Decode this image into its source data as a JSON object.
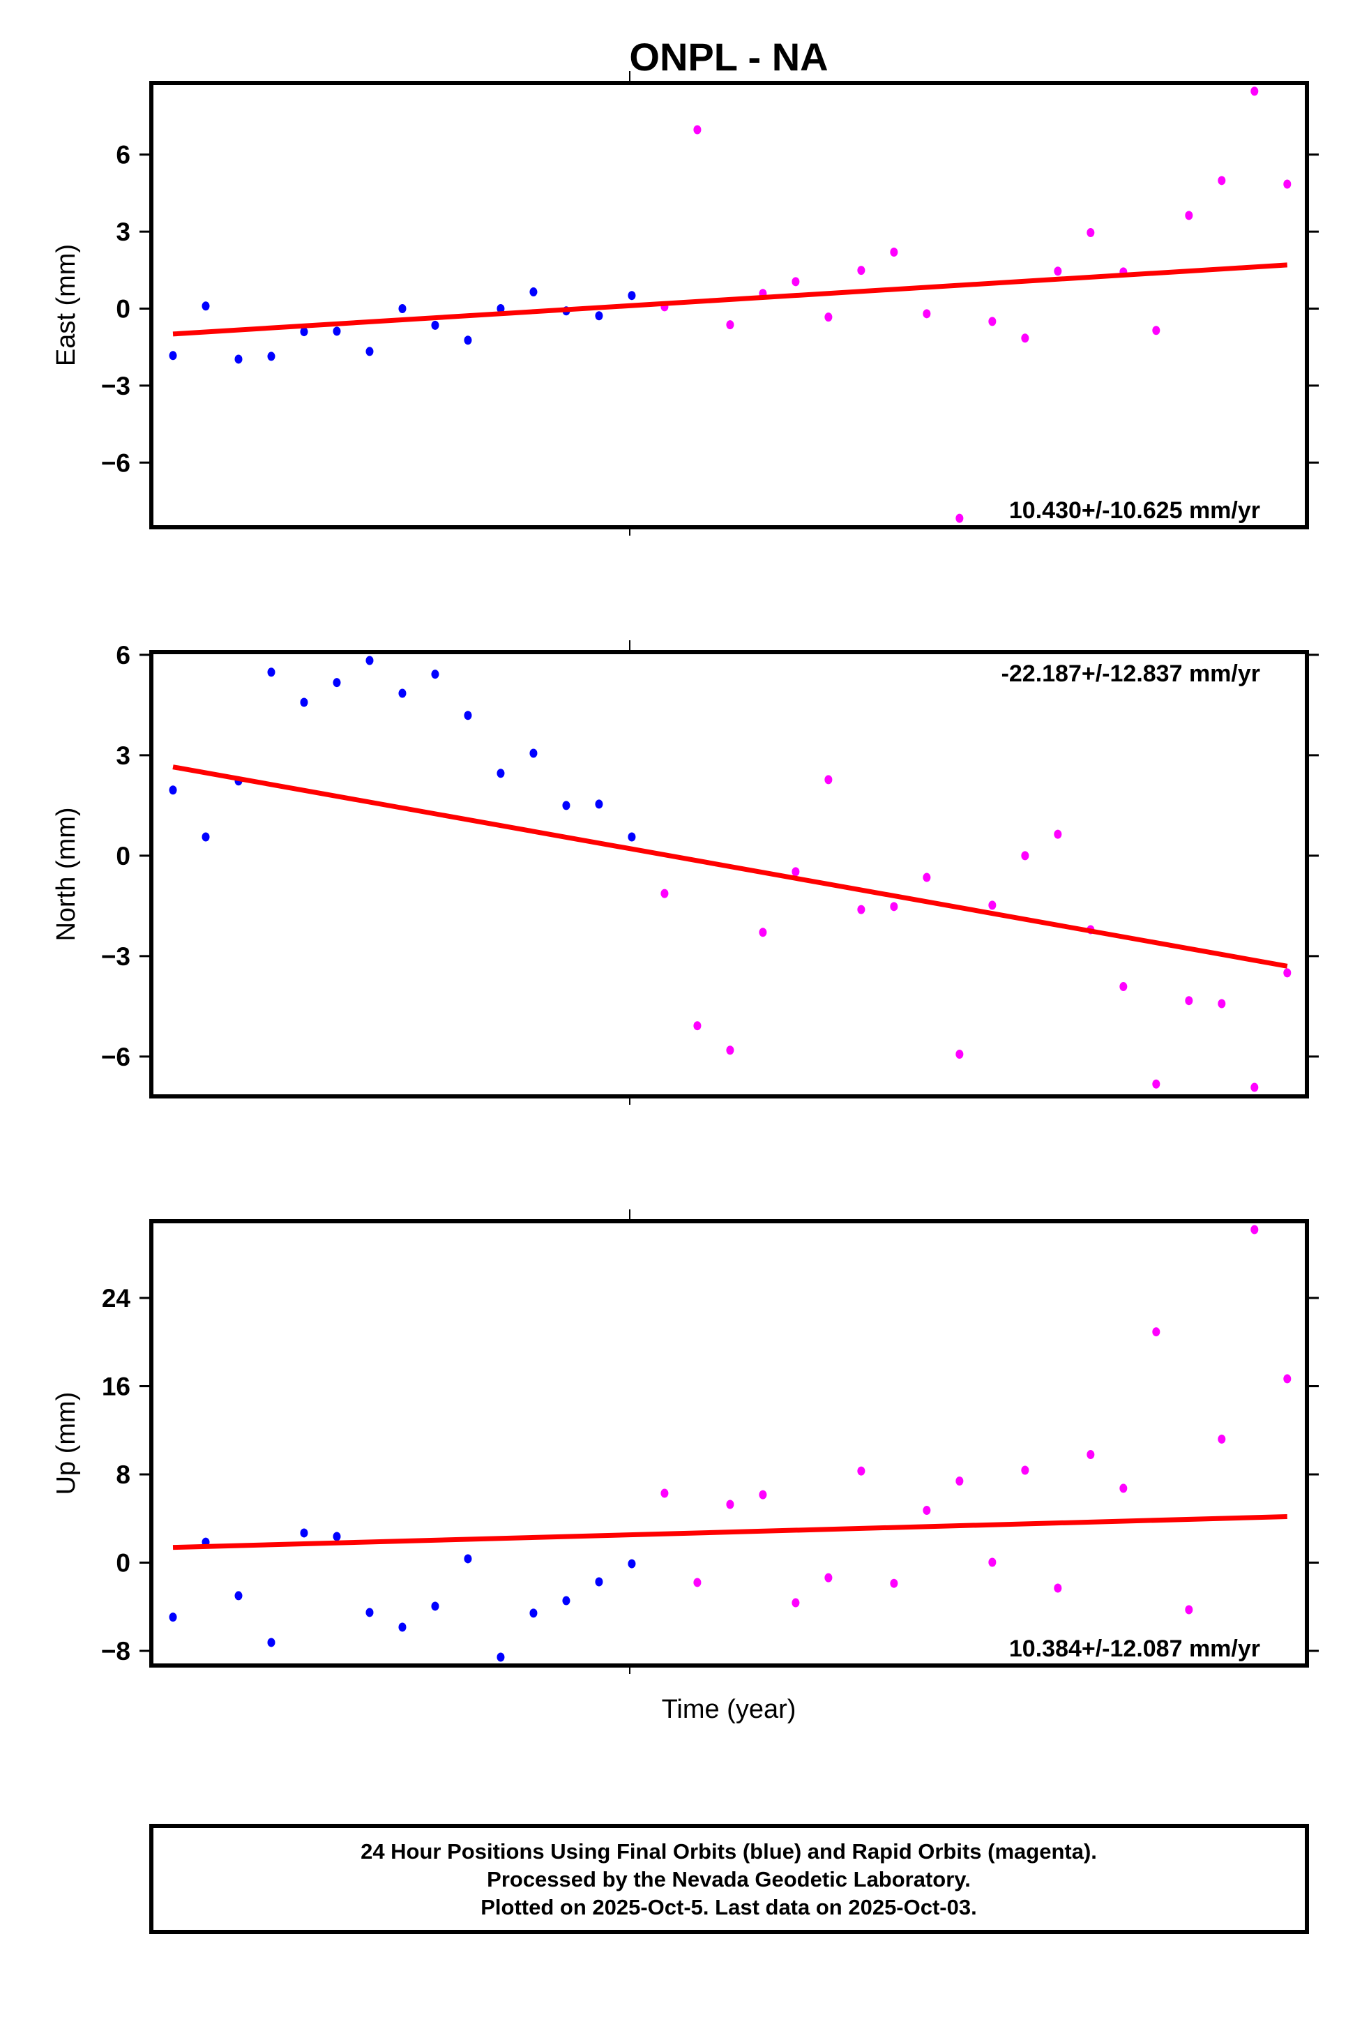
{
  "chart_data": {
    "type": "scatter",
    "title": "ONPL - NA",
    "xlabel": "Time (year)",
    "xlim": [
      0.34,
      35.6
    ],
    "x": [
      1,
      2,
      3,
      4,
      5,
      6,
      7,
      8,
      9,
      10,
      11,
      12,
      13,
      14,
      15,
      16,
      17,
      18,
      19,
      20,
      21,
      22,
      23,
      24,
      25,
      26,
      27,
      28,
      29,
      30,
      31,
      32,
      33,
      34,
      35
    ],
    "legend_colors": {
      "final": "#0000ff",
      "rapid": "#ff00ff",
      "trend": "#ff0000"
    },
    "panels": [
      {
        "name": "east",
        "ylabel": "East (mm)",
        "ylim": [
          -8.52,
          8.79
        ],
        "yticks": [
          6,
          3,
          0,
          -3,
          -6
        ],
        "ytick_labels": [
          "6",
          "3",
          "0",
          "−3",
          "−6"
        ],
        "rate_text": "10.430+/-10.625 mm/yr",
        "rate_position": "bottom-right",
        "series": [
          {
            "name": "Final Orbits",
            "color": "#0000ff",
            "start_index": 0,
            "values": [
              -1.83,
              0.1,
              -1.97,
              -1.86,
              -0.9,
              -0.88,
              -1.67,
              0.0,
              -0.65,
              -1.23,
              0.0,
              0.65,
              -0.09,
              -0.28,
              0.51
            ]
          },
          {
            "name": "Rapid Orbits",
            "color": "#ff00ff",
            "start_index": 15,
            "values": [
              0.07,
              6.97,
              -0.63,
              0.59,
              1.05,
              -0.33,
              1.49,
              2.2,
              -0.2,
              -8.17,
              -0.5,
              -1.15,
              1.46,
              2.96,
              1.43,
              -0.85,
              3.63,
              4.99,
              8.47,
              4.85
            ]
          }
        ],
        "trend": {
          "x": [
            1,
            35
          ],
          "y": [
            -0.99,
            1.7
          ]
        }
      },
      {
        "name": "north",
        "ylabel": "North (mm)",
        "ylim": [
          -7.19,
          6.08
        ],
        "yticks": [
          6,
          3,
          0,
          -3,
          -6
        ],
        "ytick_labels": [
          "6",
          "3",
          "0",
          "−3",
          "−6"
        ],
        "rate_text": "-22.187+/-12.837 mm/yr",
        "rate_position": "top-right",
        "series": [
          {
            "name": "Final Orbits",
            "color": "#0000ff",
            "start_index": 0,
            "values": [
              1.96,
              0.56,
              2.23,
              5.48,
              4.58,
              5.17,
              5.83,
              4.85,
              5.42,
              4.19,
              2.46,
              3.06,
              1.5,
              1.54,
              0.56
            ]
          },
          {
            "name": "Rapid Orbits",
            "color": "#ff00ff",
            "start_index": 15,
            "values": [
              -1.13,
              -5.08,
              -5.81,
              -2.29,
              -0.48,
              2.27,
              -1.61,
              -1.52,
              -0.65,
              -5.93,
              -1.48,
              0.0,
              0.64,
              -2.21,
              -3.91,
              -6.82,
              -4.33,
              -4.42,
              -6.92,
              -3.5
            ]
          }
        ],
        "trend": {
          "x": [
            1,
            35
          ],
          "y": [
            2.65,
            -3.3
          ]
        }
      },
      {
        "name": "up",
        "ylabel": "Up (mm)",
        "ylim": [
          -9.33,
          30.96
        ],
        "yticks": [
          24,
          16,
          8,
          0,
          -8
        ],
        "ytick_labels": [
          "24",
          "16",
          "8",
          "0",
          "−8"
        ],
        "rate_text": "10.384+/-12.087 mm/yr",
        "rate_position": "bottom-right",
        "series": [
          {
            "name": "Final Orbits",
            "color": "#0000ff",
            "start_index": 0,
            "values": [
              -4.94,
              1.86,
              -3.0,
              -7.24,
              2.69,
              2.37,
              -4.52,
              -5.85,
              -3.95,
              0.35,
              -8.57,
              -4.58,
              -3.45,
              -1.74,
              -0.1
            ]
          },
          {
            "name": "Rapid Orbits",
            "color": "#ff00ff",
            "start_index": 15,
            "values": [
              6.29,
              -1.8,
              5.28,
              6.16,
              -3.64,
              -1.37,
              8.31,
              -1.88,
              4.74,
              7.4,
              0.03,
              8.38,
              -2.31,
              9.8,
              6.74,
              20.93,
              -4.27,
              11.2,
              30.2,
              16.67
            ]
          }
        ],
        "trend": {
          "x": [
            1,
            35
          ],
          "y": [
            1.38,
            4.17
          ]
        }
      }
    ]
  },
  "footer": {
    "lines": [
      "24 Hour Positions Using Final Orbits (blue) and Rapid Orbits (magenta).",
      "Processed by the Nevada Geodetic Laboratory.",
      "Plotted on 2025-Oct-5. Last data on 2025-Oct-03."
    ]
  }
}
